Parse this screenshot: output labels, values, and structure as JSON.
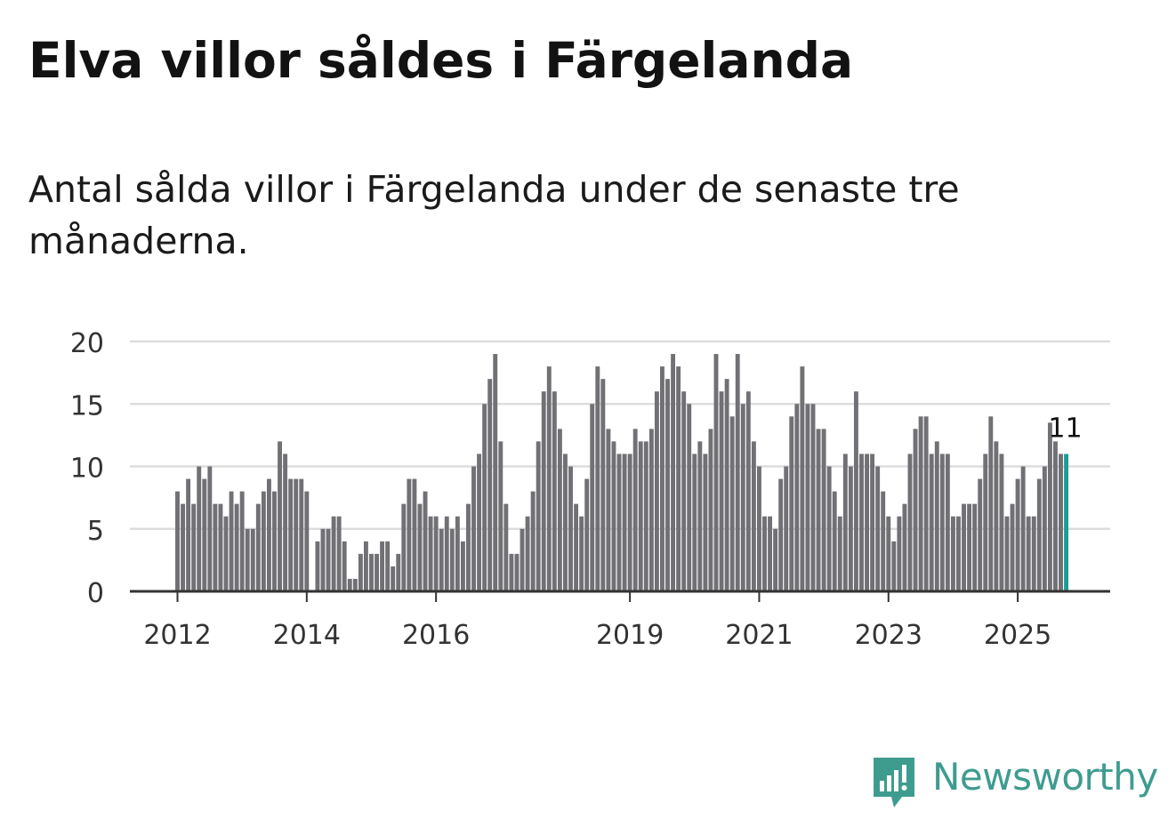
{
  "title": "Elva villor såldes i Färgelanda",
  "subtitle": "Antal sålda villor i Färgelanda under de senaste tre månaderna.",
  "brand": {
    "name": "Newsworthy",
    "color": "#3e9c8f",
    "icon": "newsworthy-logo-icon"
  },
  "colors": {
    "bar": "#717075",
    "highlight": "#1a9d96",
    "grid": "#dddddd",
    "axis": "#333333",
    "label": "#333333"
  },
  "chart_data": {
    "type": "bar",
    "title": "Elva villor såldes i Färgelanda",
    "subtitle": "Antal sålda villor i Färgelanda under de senaste tre månaderna.",
    "xlabel": "",
    "ylabel": "",
    "ylim": [
      0,
      20
    ],
    "yticks": [
      0,
      5,
      10,
      15,
      20
    ],
    "grid": true,
    "x_start": "2012-01",
    "x_step": "month",
    "xtick_labels": [
      {
        "label": "2012",
        "index": 0
      },
      {
        "label": "2014",
        "index": 24
      },
      {
        "label": "2016",
        "index": 48
      },
      {
        "label": "2019",
        "index": 84
      },
      {
        "label": "2021",
        "index": 108
      },
      {
        "label": "2023",
        "index": 132
      },
      {
        "label": "2025",
        "index": 156
      }
    ],
    "highlight": {
      "index": 165,
      "label": "11",
      "value": 11
    },
    "values": [
      8,
      7,
      9,
      7,
      10,
      9,
      10,
      7,
      7,
      6,
      8,
      7,
      8,
      5,
      5,
      7,
      8,
      9,
      8,
      12,
      11,
      9,
      9,
      9,
      8,
      0,
      4,
      5,
      5,
      6,
      6,
      4,
      1,
      1,
      3,
      4,
      3,
      3,
      4,
      4,
      2,
      3,
      7,
      9,
      9,
      7,
      8,
      6,
      6,
      5,
      6,
      5,
      6,
      4,
      7,
      10,
      11,
      15,
      17,
      19,
      12,
      7,
      3,
      3,
      5,
      6,
      8,
      12,
      16,
      18,
      16,
      13,
      11,
      10,
      7,
      6,
      9,
      15,
      18,
      17,
      13,
      12,
      11,
      11,
      11,
      13,
      12,
      12,
      13,
      16,
      18,
      17,
      19,
      18,
      16,
      15,
      11,
      12,
      11,
      13,
      19,
      16,
      17,
      14,
      19,
      15,
      16,
      12,
      10,
      6,
      6,
      5,
      9,
      10,
      14,
      15,
      18,
      15,
      15,
      13,
      13,
      10,
      8,
      6,
      11,
      10,
      16,
      11,
      11,
      11,
      10,
      8,
      6,
      4,
      6,
      7,
      11,
      13,
      14,
      14,
      11,
      12,
      11,
      11,
      6,
      6,
      7,
      7,
      7,
      9,
      11,
      14,
      12,
      11,
      6,
      7,
      9,
      10,
      6,
      6,
      9,
      10,
      13.5,
      12,
      11,
      11
    ]
  }
}
